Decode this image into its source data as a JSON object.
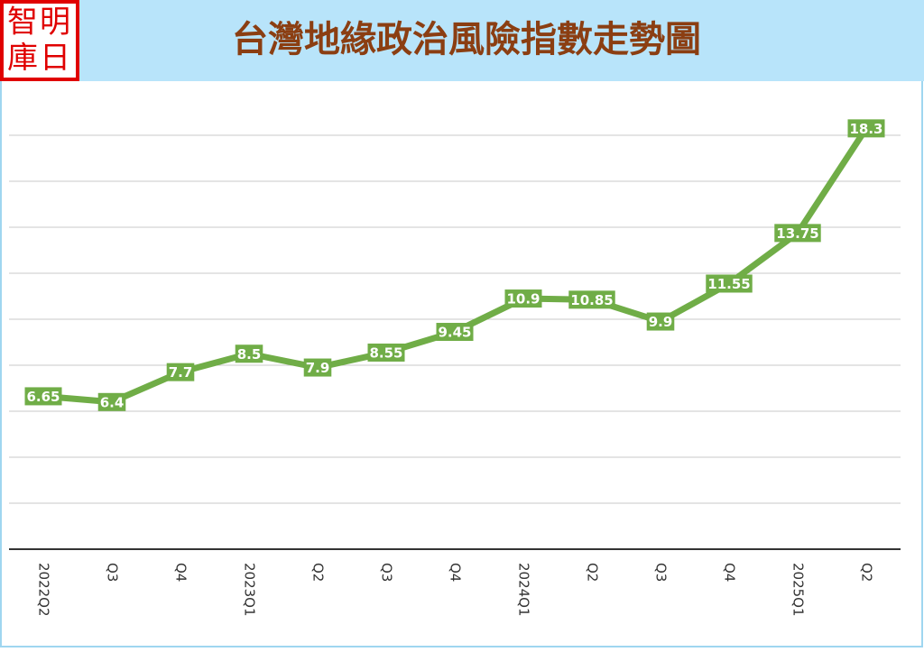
{
  "logo": {
    "lines": [
      "智明",
      "庫日"
    ]
  },
  "chart_data": {
    "type": "line",
    "title": "台灣地緣政治風險指數走勢圖",
    "categories": [
      "2022Q2",
      "Q3",
      "Q4",
      "2023Q1",
      "Q2",
      "Q3",
      "Q4",
      "2024Q1",
      "Q2",
      "Q3",
      "Q4",
      "2025Q1",
      "Q2"
    ],
    "series": [
      {
        "name": "台灣地緣政治風險指數",
        "color": "#70ad47",
        "values": [
          6.65,
          6.4,
          7.7,
          8.5,
          7.9,
          8.55,
          9.45,
          10.9,
          10.85,
          9.9,
          11.55,
          13.75,
          18.3
        ]
      }
    ],
    "ylim": [
      0,
      20
    ],
    "yticks": [
      0,
      2,
      4,
      6,
      8,
      10,
      12,
      14,
      16,
      18
    ],
    "grid": true,
    "data_labels": true
  }
}
